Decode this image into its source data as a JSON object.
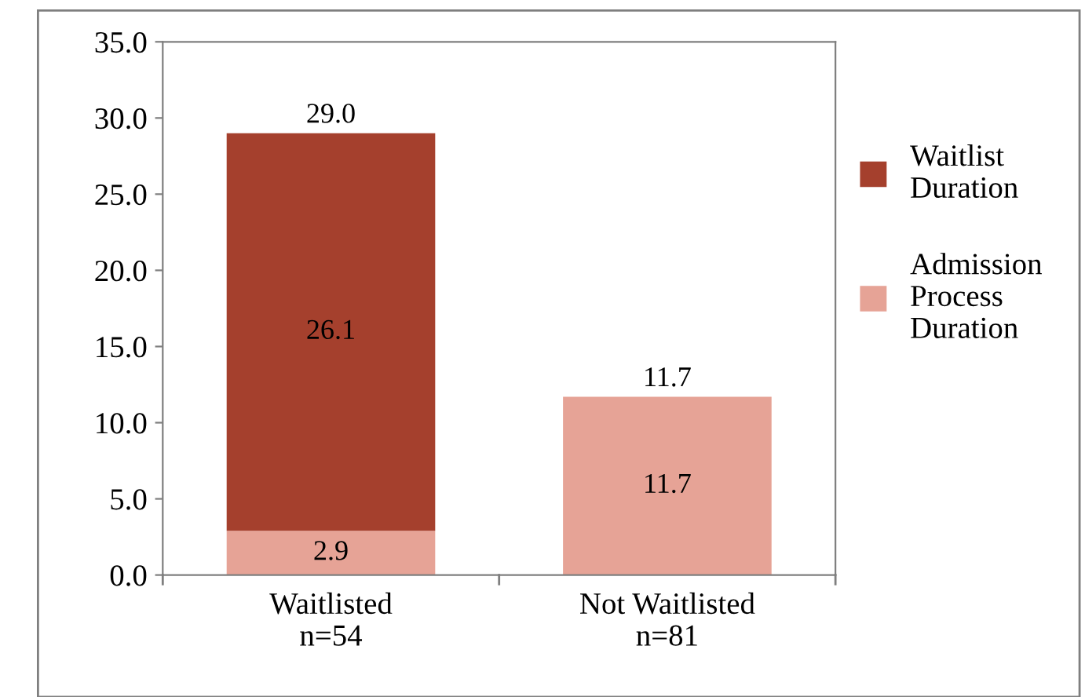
{
  "chart_data": {
    "type": "bar",
    "stacked": true,
    "categories": [
      "Waitlisted\nn=54",
      "Not Waitlisted\nn=81"
    ],
    "series": [
      {
        "name": "Admission\nProcess\nDuration",
        "color": "#e6a396",
        "values": [
          2.9,
          11.7
        ],
        "value_labels": [
          "2.9",
          "11.7"
        ]
      },
      {
        "name": "Waitlist\nDuration",
        "color": "#a5402d",
        "values": [
          26.1,
          null
        ],
        "value_labels": [
          "26.1",
          null
        ]
      }
    ],
    "totals": [
      "29.0",
      "11.7"
    ],
    "ylim": [
      0,
      35
    ],
    "yticks": [
      {
        "value": 0,
        "label": "0.0"
      },
      {
        "value": 5,
        "label": "5.0"
      },
      {
        "value": 10,
        "label": "10.0"
      },
      {
        "value": 15,
        "label": "15.0"
      },
      {
        "value": 20,
        "label": "20.0"
      },
      {
        "value": 25,
        "label": "25.0"
      },
      {
        "value": 30,
        "label": "30.0"
      },
      {
        "value": 35,
        "label": "35.0"
      }
    ],
    "grid": false,
    "legend": "right"
  }
}
